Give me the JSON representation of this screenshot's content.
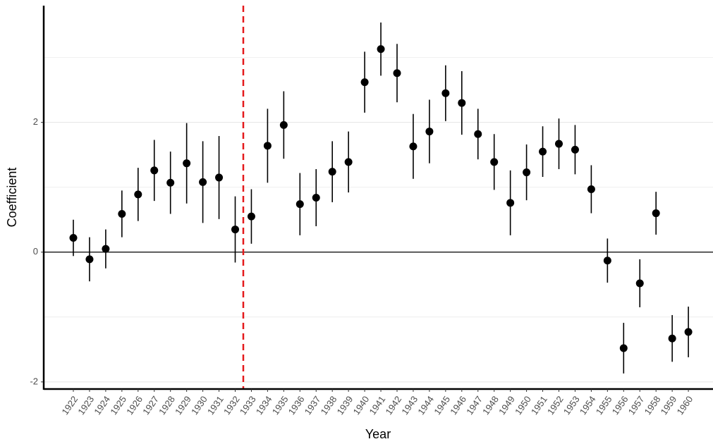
{
  "chart_data": {
    "type": "errorbar",
    "x_label": "Year",
    "y_label": "Coefficient",
    "categories": [
      "1922",
      "1923",
      "1924",
      "1925",
      "1926",
      "1927",
      "1928",
      "1929",
      "1930",
      "1931",
      "1932",
      "1933",
      "1934",
      "1935",
      "1936",
      "1937",
      "1938",
      "1939",
      "1940",
      "1941",
      "1942",
      "1943",
      "1944",
      "1945",
      "1946",
      "1947",
      "1948",
      "1949",
      "1950",
      "1951",
      "1952",
      "1953",
      "1954",
      "1955",
      "1956",
      "1957",
      "1958",
      "1959",
      "1960"
    ],
    "values": [
      0.22,
      -0.11,
      0.05,
      0.59,
      0.89,
      1.26,
      1.07,
      1.37,
      1.08,
      1.15,
      0.35,
      0.55,
      1.64,
      1.96,
      0.74,
      0.84,
      1.24,
      1.39,
      2.62,
      3.13,
      2.76,
      1.63,
      1.86,
      2.45,
      2.3,
      1.82,
      1.39,
      0.76,
      1.23,
      1.55,
      1.67,
      1.58,
      0.97,
      -0.13,
      -1.48,
      -0.48,
      0.6,
      -1.33,
      -1.23
    ],
    "errors": [
      0.28,
      0.34,
      0.3,
      0.36,
      0.41,
      0.47,
      0.48,
      0.62,
      0.63,
      0.64,
      0.51,
      0.42,
      0.57,
      0.52,
      0.48,
      0.44,
      0.47,
      0.47,
      0.47,
      0.41,
      0.45,
      0.5,
      0.49,
      0.43,
      0.49,
      0.39,
      0.43,
      0.5,
      0.43,
      0.39,
      0.39,
      0.38,
      0.37,
      0.34,
      0.39,
      0.37,
      0.33,
      0.36,
      0.39
    ],
    "color": "#000000",
    "ylim": [
      -2.11,
      3.8
    ],
    "yticks": [
      -2,
      0,
      2
    ],
    "minor_yticks": [
      -1,
      1,
      3
    ],
    "grid": true,
    "hline": 0,
    "reference_line": {
      "position": 10.5,
      "color": "#e41a1c",
      "style": "dashed"
    }
  }
}
